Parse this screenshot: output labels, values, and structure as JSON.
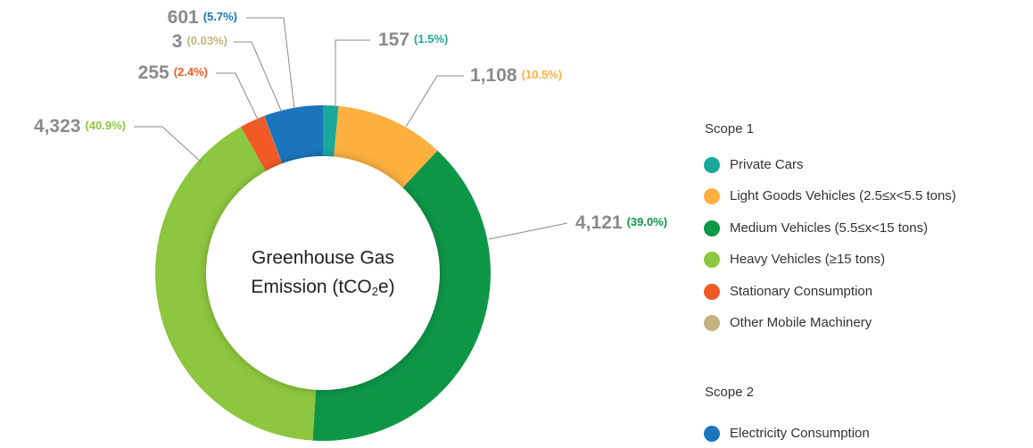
{
  "chart_data": {
    "type": "donut",
    "title": {
      "line1": "Greenhouse Gas",
      "line2": [
        "Emission (tCO",
        "2",
        "e)"
      ]
    },
    "scopes": [
      {
        "name": "Scope 1",
        "series": [
          {
            "name": "Private Cars",
            "color": "#1aa89c",
            "value": 157,
            "value_label": "157",
            "percent": 1.5,
            "percent_label": "(1.5%)"
          },
          {
            "name": "Light Goods Vehicles (2.5≤x<5.5 tons)",
            "color": "#fbb040",
            "value": 1108,
            "value_label": "1,108",
            "percent": 10.5,
            "percent_label": "(10.5%)"
          },
          {
            "name": "Medium Vehicles (5.5≤x<15 tons)",
            "color": "#0e9647",
            "value": 4121,
            "value_label": "4,121",
            "percent": 39.0,
            "percent_label": "(39.0%)"
          },
          {
            "name": "Heavy Vehicles (≥15 tons)",
            "color": "#8dc63f",
            "value": 4323,
            "value_label": "4,323",
            "percent": 40.9,
            "percent_label": "(40.9%)"
          },
          {
            "name": "Stationary Consumption",
            "color": "#f15a24",
            "value": 255,
            "value_label": "255",
            "percent": 2.4,
            "percent_label": "(2.4%)"
          },
          {
            "name": "Other Mobile Machinery",
            "color": "#c2b280",
            "value": 3,
            "value_label": "3",
            "percent": 0.03,
            "percent_label": "(0.03%)"
          }
        ]
      },
      {
        "name": "Scope 2",
        "series": [
          {
            "name": "Electricity Consumption",
            "color": "#1b75bc",
            "value": 601,
            "value_label": "601",
            "percent": 5.7,
            "percent_label": "(5.7%)"
          }
        ]
      }
    ]
  }
}
